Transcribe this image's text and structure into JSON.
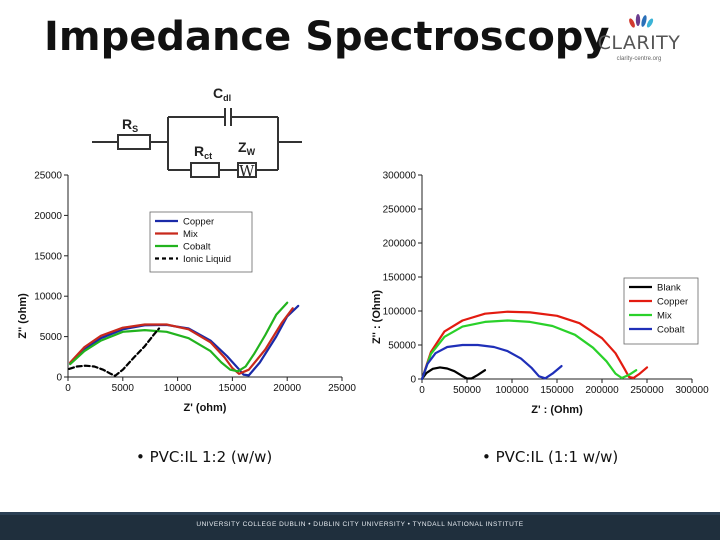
{
  "slide": {
    "title": "Impedance Spectroscopy",
    "logo_text": "CLARITY",
    "logo_sub": "clarity-centre.org",
    "bullet_left": "• PVC:IL 1:2 (w/w)",
    "bullet_right": "• PVC:IL (1:1 w/w)",
    "footer": "UNIVERSITY COLLEGE DUBLIN • DUBLIN CITY UNIVERSITY • TYNDALL NATIONAL INSTITUTE"
  },
  "circuit": {
    "labels": [
      "Cdl",
      "Rs",
      "Rct",
      "Zw",
      "W"
    ]
  },
  "chart_data": [
    {
      "type": "line",
      "xlabel": "Z' (ohm)",
      "ylabel": "Z'' (ohm)",
      "xlim": [
        0,
        25000
      ],
      "ylim": [
        0,
        25000
      ],
      "xticks": [
        "0",
        "5000",
        "10000",
        "15000",
        "20000",
        "25000"
      ],
      "yticks": [
        "0",
        "5000",
        "10000",
        "15000",
        "20000",
        "25000"
      ],
      "legend": "inside-upper-middle",
      "series": [
        {
          "name": "Copper",
          "color": "#1a2aa8",
          "dash": false,
          "x": [
            200,
            1500,
            3000,
            5000,
            7000,
            9000,
            11000,
            13000,
            14500,
            15500,
            16000,
            16500,
            17500,
            19000,
            20000,
            21000
          ],
          "y": [
            1700,
            3400,
            4800,
            5900,
            6400,
            6450,
            6000,
            4500,
            2600,
            1100,
            300,
            200,
            1800,
            5000,
            7500,
            8800
          ]
        },
        {
          "name": "Mix",
          "color": "#c8291c",
          "dash": false,
          "x": [
            200,
            1500,
            3000,
            5000,
            7000,
            9000,
            11000,
            13000,
            14300,
            15000,
            15600,
            16500,
            18000,
            19500,
            20500
          ],
          "y": [
            1800,
            3700,
            5100,
            6100,
            6500,
            6500,
            5900,
            4300,
            2400,
            1100,
            400,
            900,
            3400,
            6700,
            8500
          ]
        },
        {
          "name": "Cobalt",
          "color": "#22b31e",
          "dash": false,
          "x": [
            200,
            1500,
            3000,
            5000,
            7000,
            9000,
            11000,
            13000,
            14000,
            14800,
            15500,
            16200,
            17000,
            18000,
            19000,
            20000
          ],
          "y": [
            1600,
            3200,
            4500,
            5600,
            5800,
            5600,
            4800,
            3200,
            1800,
            900,
            700,
            1300,
            2900,
            5200,
            7700,
            9200
          ]
        },
        {
          "name": "Ionic Liquid",
          "color": "#000000",
          "dash": true,
          "x": [
            100,
            800,
            1600,
            2400,
            3200,
            3900,
            4300,
            5000,
            6000,
            7000,
            7800,
            8300
          ],
          "y": [
            1000,
            1300,
            1400,
            1300,
            900,
            400,
            150,
            900,
            2400,
            3800,
            5200,
            6000
          ]
        }
      ]
    },
    {
      "type": "line",
      "xlabel": "Z' : (Ohm)",
      "ylabel": "Z'' : (Ohm)",
      "xlim": [
        0,
        300000
      ],
      "ylim": [
        0,
        300000
      ],
      "xticks": [
        "0",
        "50000",
        "100000",
        "150000",
        "200000",
        "250000",
        "300000"
      ],
      "yticks": [
        "0",
        "50000",
        "100000",
        "150000",
        "200000",
        "250000",
        "300000"
      ],
      "legend": "right",
      "series": [
        {
          "name": "Blank",
          "color": "#000000",
          "dash": false,
          "x": [
            0,
            5000,
            12000,
            20000,
            28000,
            36000,
            44000,
            50000,
            55000,
            62000,
            70000
          ],
          "y": [
            0,
            9000,
            15000,
            17000,
            15500,
            11500,
            5000,
            800,
            800,
            6000,
            13000
          ]
        },
        {
          "name": "Copper",
          "color": "#e31b10",
          "dash": false,
          "x": [
            0,
            10000,
            25000,
            45000,
            70000,
            95000,
            120000,
            150000,
            175000,
            200000,
            215000,
            225000,
            230000,
            235000,
            242000,
            250000
          ],
          "y": [
            0,
            40000,
            70000,
            86000,
            96000,
            99000,
            98000,
            93000,
            82000,
            60000,
            38000,
            15000,
            3000,
            1500,
            8000,
            17000
          ]
        },
        {
          "name": "Mix",
          "color": "#2ad12a",
          "dash": false,
          "x": [
            0,
            10000,
            25000,
            45000,
            70000,
            95000,
            120000,
            145000,
            170000,
            190000,
            205000,
            215000,
            222000,
            230000,
            238000
          ],
          "y": [
            0,
            37000,
            62000,
            77000,
            84000,
            86000,
            84000,
            78000,
            65000,
            46000,
            26000,
            8000,
            1500,
            6000,
            13000
          ]
        },
        {
          "name": "Cobalt",
          "color": "#1f2fb8",
          "dash": false,
          "x": [
            0,
            6000,
            15000,
            28000,
            45000,
            62000,
            80000,
            95000,
            110000,
            122000,
            130000,
            137000,
            145000,
            155000
          ],
          "y": [
            0,
            22000,
            38000,
            47000,
            50000,
            50000,
            47000,
            41000,
            30000,
            16000,
            4000,
            1000,
            8000,
            19000
          ]
        }
      ]
    }
  ]
}
